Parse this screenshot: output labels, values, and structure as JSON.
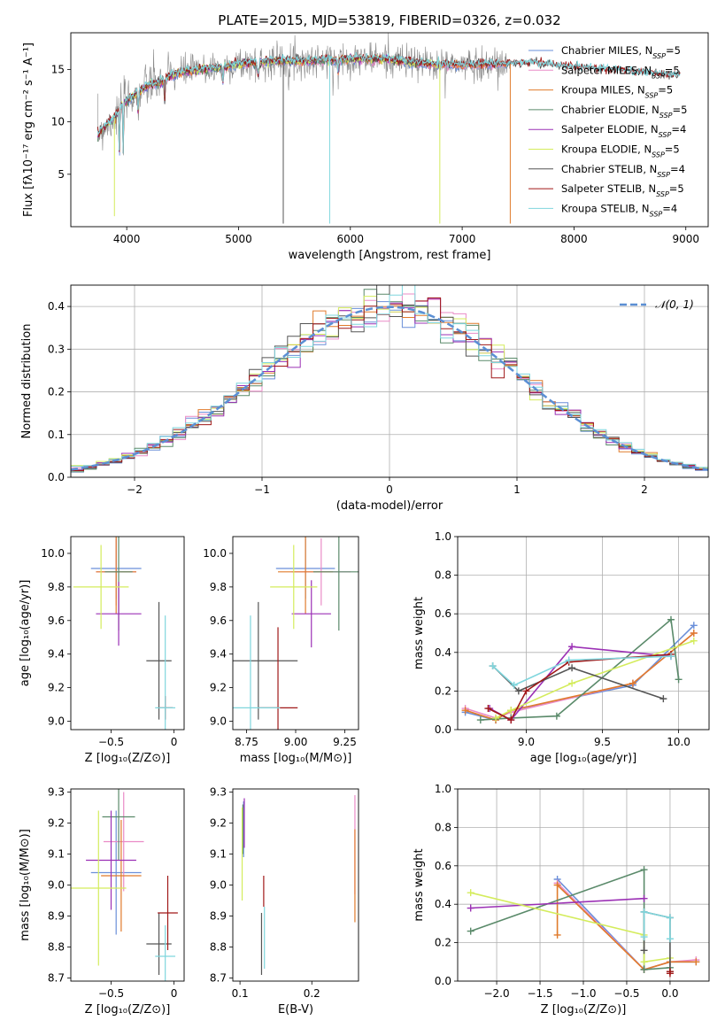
{
  "title": "PLATE=2015, MJD=53819, FIBERID=0326, z=0.032",
  "colors": {
    "Chabrier MILES": "#6a8fd9",
    "Salpeter MILES": "#ea8bc7",
    "Kroupa MILES": "#e07b2c",
    "Chabrier ELODIE": "#5a8a6a",
    "Salpeter ELODIE": "#9b30b5",
    "Kroupa ELODIE": "#d4ec5c",
    "Chabrier STELIB": "#555555",
    "Salpeter STELIB": "#a01818",
    "Kroupa STELIB": "#7fd6dd",
    "normal_curve": "#5b8fd4",
    "spectrum_gray": "#888888"
  },
  "chart_data": [
    {
      "type": "line",
      "panel": "spectrum",
      "xlabel": "wavelength [Angstrom, rest frame]",
      "ylabel": "Flux [fλ10⁻¹⁷ erg cm⁻² s⁻¹ A⁻¹]",
      "xlim": [
        3500,
        9200
      ],
      "ylim": [
        0,
        18.5
      ],
      "xticks": [
        4000,
        5000,
        6000,
        7000,
        8000,
        9000
      ],
      "yticks": [
        5,
        10,
        15
      ],
      "grid": false,
      "legend_position": "top-right",
      "legend": [
        "Chabrier MILES, N_SSP=5",
        "Salpeter MILES, N_SSP=5",
        "Kroupa MILES, N_SSP=5",
        "Chabrier ELODIE, N_SSP=5",
        "Salpeter ELODIE, N_SSP=4",
        "Kroupa ELODIE, N_SSP=5",
        "Chabrier STELIB, N_SSP=4",
        "Salpeter STELIB, N_SSP=5",
        "Kroupa STELIB, N_SSP=4"
      ],
      "continuum": {
        "x": [
          3740,
          3800,
          3850,
          3900,
          3950,
          4000,
          4100,
          4200,
          4300,
          4400,
          4500,
          4700,
          5000,
          5300,
          5600,
          6000,
          6300,
          6600,
          7000,
          7300,
          7600,
          8000,
          8500,
          8900
        ],
        "y": [
          8.8,
          9.5,
          10.0,
          10.5,
          11.5,
          12.0,
          12.8,
          13.5,
          13.8,
          14.4,
          14.8,
          15.0,
          15.5,
          15.8,
          15.8,
          16.0,
          16.0,
          15.6,
          15.4,
          15.5,
          15.6,
          15.2,
          14.8,
          14.4
        ]
      },
      "spikes": [
        {
          "x": 3890,
          "y": 1.0,
          "series": "Kroupa ELODIE"
        },
        {
          "x": 4340,
          "y": 12.0,
          "series": "Salpeter STELIB"
        },
        {
          "x": 5400,
          "y": 0.3,
          "series": "Chabrier STELIB"
        },
        {
          "x": 5815,
          "y": 0.3,
          "series": "Kroupa STELIB"
        },
        {
          "x": 6800,
          "y": 0.3,
          "series": "Kroupa ELODIE"
        },
        {
          "x": 7430,
          "y": 0.3,
          "series": "Kroupa MILES"
        }
      ]
    },
    {
      "type": "line",
      "panel": "residual_histogram",
      "xlabel": "(data-model)/error",
      "ylabel": "Normed distribution",
      "xlim": [
        -2.5,
        2.5
      ],
      "ylim": [
        0,
        0.45
      ],
      "xticks": [
        -2,
        -1,
        0,
        1,
        2
      ],
      "yticks": [
        0.0,
        0.1,
        0.2,
        0.3,
        0.4
      ],
      "grid": true,
      "legend_position": "top-right",
      "legend": [
        "𝒩(0, 1)"
      ],
      "bin_width": 0.1,
      "normal_curve": {
        "mean": 0,
        "sigma": 1
      }
    },
    {
      "type": "scatter",
      "panel": "age_vs_Z",
      "xlabel": "Z [log₁₀(Z/Z⊙)]",
      "ylabel": "age  [log₁₀(age/yr)]",
      "xlim": [
        -0.82,
        0.08
      ],
      "ylim": [
        8.95,
        10.1
      ],
      "xticks": [
        -0.5,
        0.0
      ],
      "yticks": [
        9.0,
        9.2,
        9.4,
        9.6,
        9.8,
        10.0
      ],
      "grid": false,
      "points": [
        {
          "series": "Chabrier MILES",
          "x": -0.46,
          "y": 9.91,
          "xerr": 0.2,
          "yerr": 0.18
        },
        {
          "series": "Salpeter MILES",
          "x": -0.46,
          "y": 9.89,
          "xerr": 0.16,
          "yerr": 0.2
        },
        {
          "series": "Kroupa MILES",
          "x": -0.46,
          "y": 9.89,
          "xerr": 0.16,
          "yerr": 0.25
        },
        {
          "series": "Chabrier ELODIE",
          "x": -0.44,
          "y": 9.89,
          "xerr": 0.11,
          "yerr": 0.35
        },
        {
          "series": "Salpeter ELODIE",
          "x": -0.44,
          "y": 9.64,
          "xerr": 0.18,
          "yerr": 0.19
        },
        {
          "series": "Kroupa ELODIE",
          "x": -0.58,
          "y": 9.8,
          "xerr": 0.22,
          "yerr": 0.25
        },
        {
          "series": "Chabrier STELIB",
          "x": -0.12,
          "y": 9.36,
          "xerr": 0.1,
          "yerr": 0.35
        },
        {
          "series": "Salpeter STELIB",
          "x": -0.07,
          "y": 9.08,
          "xerr": 0.06,
          "yerr": 0.07
        },
        {
          "series": "Kroupa STELIB",
          "x": -0.07,
          "y": 9.08,
          "xerr": 0.08,
          "yerr": 0.55
        }
      ]
    },
    {
      "type": "scatter",
      "panel": "age_vs_mass",
      "xlabel": "mass [log₁₀(M/M⊙)]",
      "ylabel": "",
      "xlim": [
        8.68,
        9.32
      ],
      "ylim": [
        8.95,
        10.1
      ],
      "xticks": [
        8.75,
        9.0,
        9.25
      ],
      "yticks": [
        9.0,
        9.2,
        9.4,
        9.6,
        9.8,
        10.0
      ],
      "grid": false,
      "points": [
        {
          "series": "Chabrier MILES",
          "x": 9.05,
          "y": 9.91,
          "xerr": 0.15,
          "yerr": 0.18
        },
        {
          "series": "Salpeter MILES",
          "x": 9.13,
          "y": 9.89,
          "xerr": 0.15,
          "yerr": 0.2
        },
        {
          "series": "Kroupa MILES",
          "x": 9.05,
          "y": 9.89,
          "xerr": 0.14,
          "yerr": 0.25
        },
        {
          "series": "Chabrier ELODIE",
          "x": 9.22,
          "y": 9.89,
          "xerr": 0.13,
          "yerr": 0.35
        },
        {
          "series": "Salpeter ELODIE",
          "x": 9.08,
          "y": 9.64,
          "xerr": 0.1,
          "yerr": 0.2
        },
        {
          "series": "Kroupa ELODIE",
          "x": 8.99,
          "y": 9.8,
          "xerr": 0.12,
          "yerr": 0.25
        },
        {
          "series": "Chabrier STELIB",
          "x": 8.81,
          "y": 9.36,
          "xerr": 0.2,
          "yerr": 0.35
        },
        {
          "series": "Salpeter STELIB",
          "x": 8.91,
          "y": 9.08,
          "xerr": 0.1,
          "yerr": 0.48
        },
        {
          "series": "Kroupa STELIB",
          "x": 8.77,
          "y": 9.08,
          "xerr": 0.15,
          "yerr": 0.55
        }
      ]
    },
    {
      "type": "line",
      "panel": "mass_weight_vs_age",
      "xlabel": "age  [log₁₀(age/yr)]",
      "ylabel": "mass weight",
      "xlim": [
        8.55,
        10.2
      ],
      "ylim": [
        0,
        1.0
      ],
      "xticks": [
        9.0,
        9.5,
        10.0
      ],
      "yticks": [
        0.0,
        0.2,
        0.4,
        0.6,
        0.8,
        1.0
      ],
      "grid": true,
      "series": [
        {
          "name": "Chabrier MILES",
          "x": [
            8.6,
            8.8,
            8.9,
            9.7,
            10.1
          ],
          "y": [
            0.09,
            0.05,
            0.1,
            0.23,
            0.54
          ]
        },
        {
          "name": "Salpeter MILES",
          "x": [
            8.6,
            8.8,
            8.9,
            9.7,
            10.1
          ],
          "y": [
            0.11,
            0.06,
            0.09,
            0.24,
            0.5
          ]
        },
        {
          "name": "Kroupa MILES",
          "x": [
            8.6,
            8.8,
            8.9,
            9.7,
            10.1
          ],
          "y": [
            0.1,
            0.05,
            0.1,
            0.24,
            0.5
          ]
        },
        {
          "name": "Chabrier ELODIE",
          "x": [
            8.7,
            8.9,
            9.2,
            9.95,
            10.0
          ],
          "y": [
            0.05,
            0.06,
            0.07,
            0.57,
            0.26
          ]
        },
        {
          "name": "Salpeter ELODIE",
          "x": [
            8.76,
            8.9,
            9.3,
            9.95
          ],
          "y": [
            0.11,
            0.05,
            0.43,
            0.38
          ]
        },
        {
          "name": "Kroupa ELODIE",
          "x": [
            8.8,
            8.9,
            9.3,
            10.1
          ],
          "y": [
            0.06,
            0.1,
            0.24,
            0.46
          ]
        },
        {
          "name": "Chabrier STELIB",
          "x": [
            8.78,
            8.95,
            9.3,
            9.9
          ],
          "y": [
            0.33,
            0.2,
            0.32,
            0.16
          ]
        },
        {
          "name": "Salpeter STELIB",
          "x": [
            8.75,
            8.9,
            9.0,
            9.28,
            9.95
          ],
          "y": [
            0.11,
            0.05,
            0.2,
            0.35,
            0.39
          ]
        },
        {
          "name": "Kroupa STELIB",
          "x": [
            8.78,
            8.92,
            9.28,
            9.95
          ],
          "y": [
            0.33,
            0.23,
            0.36,
            0.38
          ]
        }
      ]
    },
    {
      "type": "scatter",
      "panel": "mass_vs_Z",
      "xlabel": "Z [log₁₀(Z/Z⊙)]",
      "ylabel": "mass [log₁₀(M/M⊙)]",
      "xlim": [
        -0.82,
        0.08
      ],
      "ylim": [
        8.69,
        9.31
      ],
      "xticks": [
        -0.5,
        0.0
      ],
      "yticks": [
        8.7,
        8.8,
        8.9,
        9.0,
        9.1,
        9.2,
        9.3
      ],
      "grid": false,
      "points": [
        {
          "series": "Chabrier MILES",
          "x": -0.46,
          "y": 9.04,
          "xerr": 0.2,
          "yerr": 0.2
        },
        {
          "series": "Salpeter MILES",
          "x": -0.4,
          "y": 9.14,
          "xerr": 0.16,
          "yerr": 0.16
        },
        {
          "series": "Kroupa MILES",
          "x": -0.42,
          "y": 9.03,
          "xerr": 0.16,
          "yerr": 0.18
        },
        {
          "series": "Chabrier ELODIE",
          "x": -0.44,
          "y": 9.22,
          "xerr": 0.13,
          "yerr": 0.14
        },
        {
          "series": "Salpeter ELODIE",
          "x": -0.5,
          "y": 9.08,
          "xerr": 0.2,
          "yerr": 0.16
        },
        {
          "series": "Kroupa ELODIE",
          "x": -0.6,
          "y": 8.99,
          "xerr": 0.22,
          "yerr": 0.25
        },
        {
          "series": "Chabrier STELIB",
          "x": -0.12,
          "y": 8.81,
          "xerr": 0.1,
          "yerr": 0.1
        },
        {
          "series": "Salpeter STELIB",
          "x": -0.05,
          "y": 8.91,
          "xerr": 0.08,
          "yerr": 0.12
        },
        {
          "series": "Kroupa STELIB",
          "x": -0.07,
          "y": 8.77,
          "xerr": 0.08,
          "yerr": 0.1
        }
      ]
    },
    {
      "type": "scatter",
      "panel": "mass_vs_EBV",
      "xlabel": "E(B-V)",
      "ylabel": "",
      "xlim": [
        0.09,
        0.265
      ],
      "ylim": [
        8.69,
        9.31
      ],
      "xticks": [
        0.1,
        0.2
      ],
      "yticks": [
        8.7,
        8.8,
        8.9,
        9.0,
        9.1,
        9.2,
        9.3
      ],
      "grid": false,
      "points": [
        {
          "series": "Chabrier MILES",
          "x": 0.105,
          "y": 9.18,
          "xerr": 0,
          "yerr": 0.09
        },
        {
          "series": "Salpeter MILES",
          "x": 0.26,
          "y": 9.13,
          "xerr": 0,
          "yerr": 0.16
        },
        {
          "series": "Kroupa MILES",
          "x": 0.26,
          "y": 9.03,
          "xerr": 0,
          "yerr": 0.15
        },
        {
          "series": "Chabrier ELODIE",
          "x": 0.104,
          "y": 9.18,
          "xerr": 0,
          "yerr": 0.08
        },
        {
          "series": "Salpeter ELODIE",
          "x": 0.106,
          "y": 9.2,
          "xerr": 0,
          "yerr": 0.08
        },
        {
          "series": "Kroupa ELODIE",
          "x": 0.103,
          "y": 9.1,
          "xerr": 0,
          "yerr": 0.15
        },
        {
          "series": "Chabrier STELIB",
          "x": 0.13,
          "y": 8.81,
          "xerr": 0,
          "yerr": 0.1
        },
        {
          "series": "Salpeter STELIB",
          "x": 0.133,
          "y": 8.98,
          "xerr": 0,
          "yerr": 0.05
        },
        {
          "series": "Kroupa STELIB",
          "x": 0.134,
          "y": 8.83,
          "xerr": 0,
          "yerr": 0.1
        }
      ]
    },
    {
      "type": "line",
      "panel": "mass_weight_vs_Z",
      "xlabel": "Z [log₁₀(Z/Z⊙)]",
      "ylabel": "mass weight",
      "xlim": [
        -2.45,
        0.45
      ],
      "ylim": [
        0,
        1.0
      ],
      "xticks": [
        -2.0,
        -1.5,
        -1.0,
        -0.5,
        0.0
      ],
      "yticks": [
        0.0,
        0.2,
        0.4,
        0.6,
        0.8,
        1.0
      ],
      "grid": true,
      "series": [
        {
          "name": "Chabrier MILES",
          "x": [
            -1.3,
            -0.3,
            0.0,
            0.3
          ],
          "y": [
            0.53,
            0.06,
            0.1,
            0.1
          ]
        },
        {
          "name": "Salpeter MILES",
          "x": [
            -1.3,
            -0.3,
            0.0,
            0.3
          ],
          "y": [
            0.51,
            0.06,
            0.1,
            0.11
          ]
        },
        {
          "name": "Kroupa MILES",
          "x": [
            -1.3,
            -1.3,
            -0.3,
            0.0,
            0.3
          ],
          "y": [
            0.24,
            0.5,
            0.06,
            0.1,
            0.1
          ]
        },
        {
          "name": "Chabrier ELODIE",
          "x": [
            -2.3,
            -0.3,
            -0.3,
            0.0
          ],
          "y": [
            0.26,
            0.58,
            0.06,
            0.07
          ]
        },
        {
          "name": "Salpeter ELODIE",
          "x": [
            -2.3,
            -0.3
          ],
          "y": [
            0.38,
            0.43
          ]
        },
        {
          "name": "Kroupa ELODIE",
          "x": [
            -2.3,
            -0.3,
            -0.3,
            0.0
          ],
          "y": [
            0.46,
            0.24,
            0.1,
            0.12
          ]
        },
        {
          "name": "Chabrier STELIB",
          "x": [
            -0.3,
            -0.3,
            0.0,
            0.0
          ],
          "y": [
            0.16,
            0.36,
            0.33,
            0.05
          ]
        },
        {
          "name": "Salpeter STELIB",
          "x": [
            0.0,
            0.0
          ],
          "y": [
            0.05,
            0.04
          ]
        },
        {
          "name": "Kroupa STELIB",
          "x": [
            -0.3,
            -0.3,
            0.0,
            0.0
          ],
          "y": [
            0.23,
            0.36,
            0.33,
            0.22
          ]
        }
      ]
    }
  ]
}
